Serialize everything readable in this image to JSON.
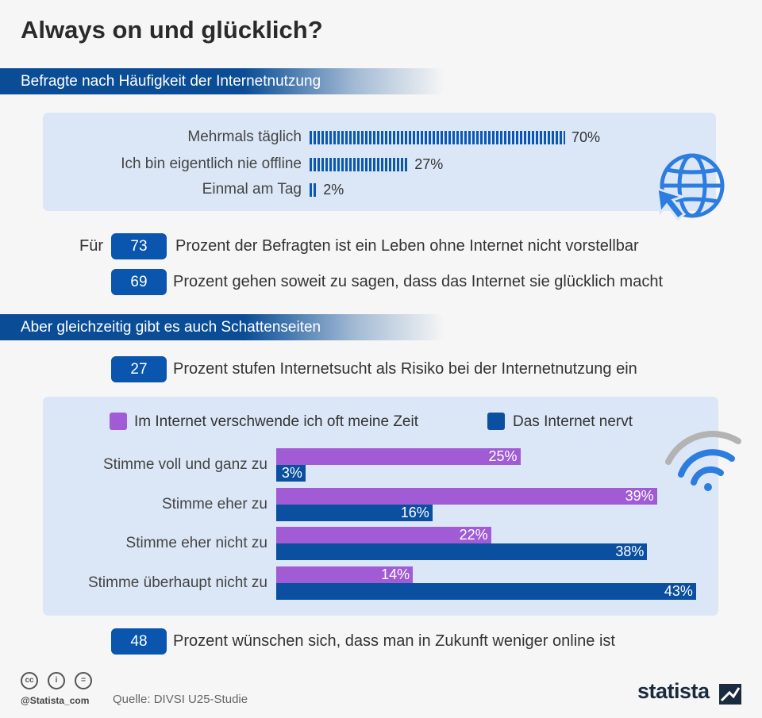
{
  "title": "Always on und glücklich?",
  "section1": "Befragte nach Häufigkeit der Internetnutzung",
  "usage": [
    {
      "label": "Mehrmals täglich",
      "value": 70,
      "pct_label": "70%"
    },
    {
      "label": "Ich bin eigentlich nie offline",
      "value": 27,
      "pct_label": "27%"
    },
    {
      "label": "Einmal am Tag",
      "value": 2,
      "pct_label": "2%"
    }
  ],
  "stat1": {
    "prefix": "Für",
    "number": "73",
    "text": "Prozent der Befragten ist ein Leben ohne Internet nicht vorstellbar"
  },
  "stat2": {
    "number": "69",
    "text": "Prozent gehen soweit zu sagen, dass das Internet sie glücklich macht"
  },
  "section2": "Aber gleichzeitig gibt es auch Schattenseiten",
  "stat3": {
    "number": "27",
    "text": "Prozent stufen Internetsucht als Risiko bei der Internetnutzung ein"
  },
  "stat4": {
    "number": "48",
    "text": "Prozent wünschen sich, dass man in Zukunft weniger online ist"
  },
  "colors": {
    "purple": "#a05bd5",
    "blue": "#0a4fa0",
    "accent": "#0a55ad"
  },
  "chart_data": [
    {
      "type": "bar",
      "orientation": "horizontal",
      "title": "Befragte nach Häufigkeit der Internetnutzung",
      "categories": [
        "Mehrmals täglich",
        "Ich bin eigentlich nie offline",
        "Einmal am Tag"
      ],
      "values": [
        70,
        27,
        2
      ],
      "unit": "%"
    },
    {
      "type": "bar",
      "orientation": "horizontal",
      "title": "Aber gleichzeitig gibt es auch Schattenseiten",
      "categories": [
        "Stimme voll und ganz zu",
        "Stimme eher zu",
        "Stimme eher nicht zu",
        "Stimme überhaupt nicht zu"
      ],
      "series": [
        {
          "name": "Im Internet verschwende ich oft meine Zeit",
          "values": [
            25,
            39,
            22,
            14
          ],
          "labels": [
            "25%",
            "39%",
            "22%",
            "14%"
          ],
          "color": "#a05bd5"
        },
        {
          "name": "Das Internet nervt",
          "values": [
            3,
            16,
            38,
            43
          ],
          "labels": [
            "3%",
            "16%",
            "38%",
            "43%"
          ],
          "color": "#0a4fa0"
        }
      ],
      "xlim": [
        0,
        43
      ],
      "unit": "%"
    }
  ],
  "footer": {
    "handle": "@Statista_com",
    "source": "Quelle: DIVSI U25-Studie",
    "brand": "statista",
    "cc_icons": [
      "cc",
      "i",
      "="
    ]
  }
}
